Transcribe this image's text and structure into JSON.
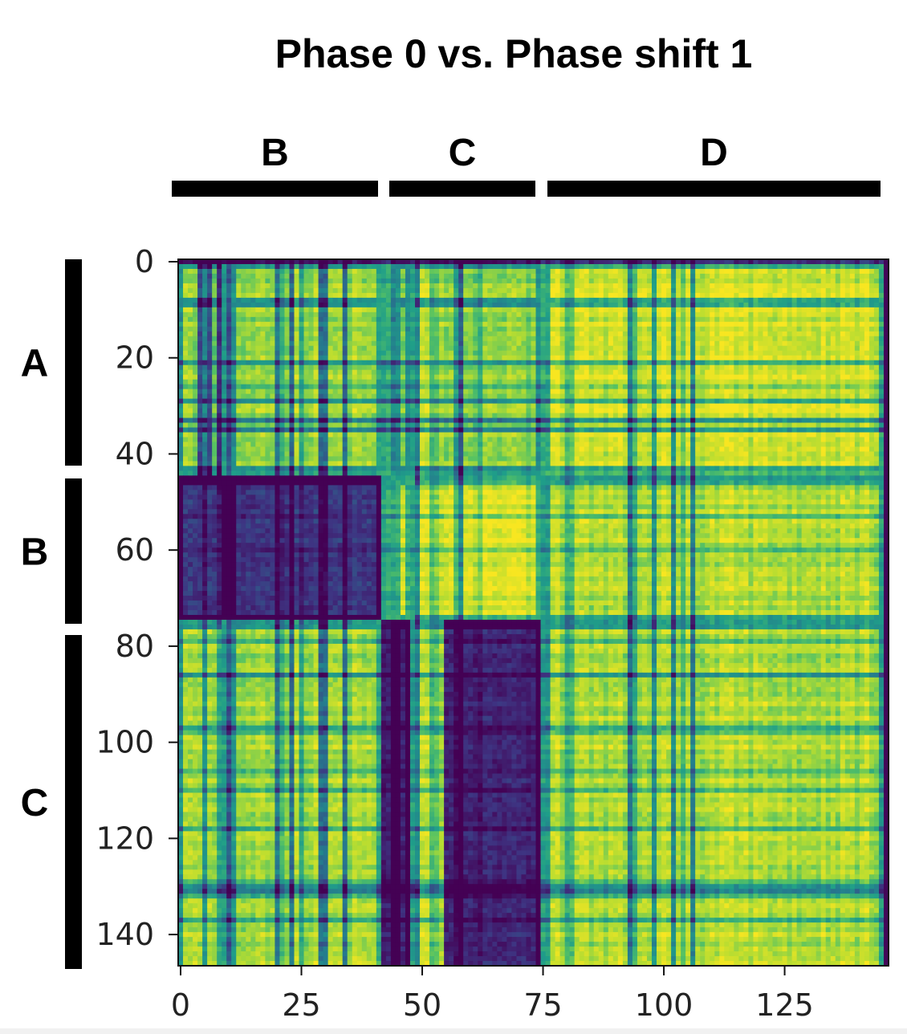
{
  "chart_data": {
    "type": "heatmap",
    "title": "Phase 0 vs. Phase shift 1",
    "xlabel": "",
    "ylabel": "",
    "n_rows": 147,
    "n_cols": 147,
    "xlim": [
      0,
      147
    ],
    "ylim": [
      147,
      0
    ],
    "x_ticks": [
      0,
      25,
      50,
      75,
      100,
      125
    ],
    "y_ticks": [
      0,
      20,
      40,
      60,
      80,
      100,
      120,
      140
    ],
    "colormap": "viridis",
    "value_range": [
      0,
      1
    ],
    "row_segments": [
      {
        "label": "A",
        "start": 0,
        "end": 45
      },
      {
        "label": "B",
        "start": 45,
        "end": 75
      },
      {
        "label": "C",
        "start": 75,
        "end": 147
      }
    ],
    "col_segments": [
      {
        "label": "B",
        "start": 0,
        "end": 42
      },
      {
        "label": "",
        "start": 42,
        "end": 44
      },
      {
        "label": "C",
        "start": 44,
        "end": 75
      },
      {
        "label": "D",
        "start": 75,
        "end": 147
      }
    ],
    "block_similarity": [
      [
        0.82,
        0.92,
        0.78,
        0.92
      ],
      [
        0.18,
        0.9,
        0.92,
        0.86
      ],
      [
        0.84,
        0.4,
        0.12,
        0.86
      ]
    ]
  },
  "colors": {
    "dark": "#2d1e5e",
    "mid": "#2a9d8f",
    "light": "#f5e620",
    "bar": "#000000"
  }
}
